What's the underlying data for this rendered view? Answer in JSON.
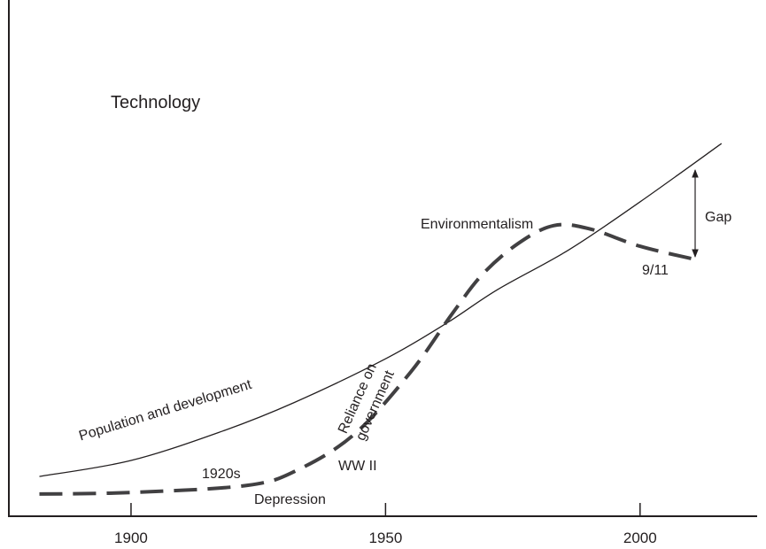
{
  "chart_data": {
    "type": "line",
    "y_label": "Technology",
    "xlim": [
      1876,
      2023
    ],
    "ylim": [
      0,
      100
    ],
    "xticks": [
      1900,
      1950,
      2000
    ],
    "series": [
      {
        "color": "#231f20",
        "style": "solid",
        "x": [
          1882,
          1900,
          1918,
          1932,
          1950,
          1962,
          1972,
          1986,
          2000,
          2016
        ],
        "values": [
          7.7,
          10.8,
          16.5,
          22,
          30.5,
          37.4,
          43.9,
          51.6,
          60.9,
          72.2
        ]
      },
      {
        "color": "#414042",
        "style": "dashed",
        "x": [
          1882,
          1900,
          1923,
          1933,
          1944,
          1955,
          1963,
          1969,
          1976,
          1983,
          1990,
          2000,
          2011
        ],
        "values": [
          4.3,
          4.6,
          6,
          9.1,
          16,
          28,
          39.1,
          46.8,
          52.8,
          56.3,
          55.7,
          52.3,
          49.7
        ]
      }
    ],
    "annotations": [
      "Population and development",
      "1920s",
      "Depression",
      "WW II",
      "Reliance on",
      "government",
      "Environmentalism",
      "9/11",
      "Gap"
    ]
  }
}
